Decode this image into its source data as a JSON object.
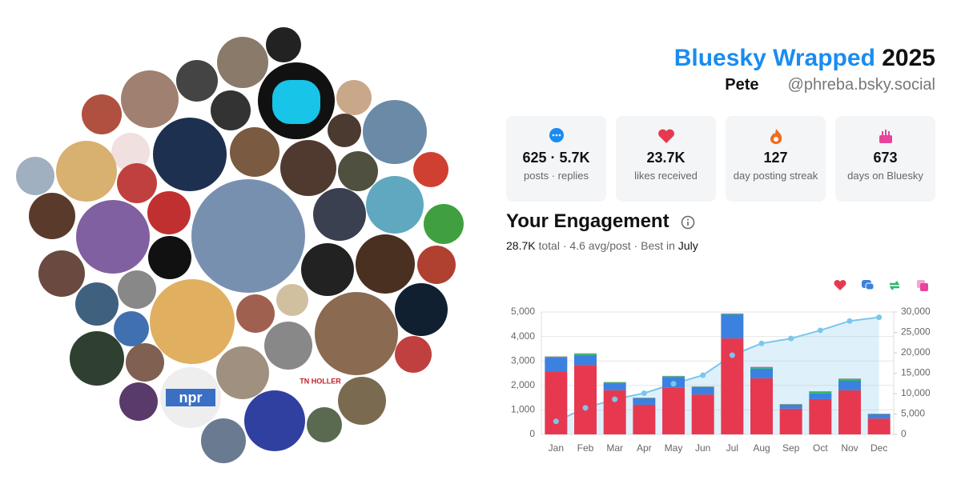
{
  "header": {
    "title": "Bluesky Wrapped",
    "year": "2025",
    "name": "Pete",
    "handle": "@phreba.bsky.social"
  },
  "stats": [
    {
      "value": "625 · 5.7K",
      "label": "posts · replies"
    },
    {
      "value": "23.7K",
      "label": "likes received"
    },
    {
      "value": "127",
      "label": "day posting streak"
    },
    {
      "value": "673",
      "label": "days on Bluesky"
    }
  ],
  "engagement": {
    "title": "Your Engagement",
    "total": "28.7K",
    "summary": "total · 4.6 avg/post · Best in",
    "best": "July"
  },
  "avatars": {
    "labels": [
      "npr",
      "TN HOLLER"
    ]
  },
  "chart_data": {
    "type": "bar",
    "categories": [
      "Jan",
      "Feb",
      "Mar",
      "Apr",
      "May",
      "Jun",
      "Jul",
      "Aug",
      "Sep",
      "Oct",
      "Nov",
      "Dec"
    ],
    "series": [
      {
        "color": "#e63950",
        "values": [
          2580,
          2840,
          1800,
          1210,
          1900,
          1630,
          3920,
          2290,
          1050,
          1440,
          1800,
          650
        ]
      },
      {
        "color": "#3b82e0",
        "values": [
          560,
          400,
          290,
          260,
          450,
          300,
          980,
          400,
          160,
          230,
          390,
          170
        ]
      },
      {
        "color": "#2fb86b",
        "values": [
          40,
          60,
          40,
          20,
          30,
          20,
          30,
          60,
          20,
          80,
          80,
          20
        ]
      },
      {
        "color": "#e8449a",
        "values": [
          10,
          10,
          10,
          10,
          10,
          10,
          10,
          10,
          10,
          10,
          10,
          10
        ]
      },
      {
        "type": "line",
        "axis": "y2",
        "color": "#7cc6ee",
        "values": [
          3200,
          6500,
          8600,
          10100,
          12400,
          14500,
          19400,
          22300,
          23500,
          25500,
          27800,
          28700
        ]
      }
    ],
    "ylim": [
      0,
      5000
    ],
    "yticks": [
      0,
      {
        "value": 1000,
        "label": "1,000"
      },
      {
        "value": 2000,
        "label": "2,000"
      },
      {
        "value": 3000,
        "label": "3,000"
      },
      {
        "value": 4000,
        "label": "4,000"
      },
      {
        "value": 5000,
        "label": "5,000"
      }
    ],
    "y2lim": [
      0,
      30000
    ],
    "y2ticks": [
      0,
      {
        "value": 5000,
        "label": "5,000"
      },
      {
        "value": 10000,
        "label": "10,000"
      },
      {
        "value": 15000,
        "label": "15,000"
      },
      {
        "value": 20000,
        "label": "20,000"
      },
      {
        "value": 25000,
        "label": "25,000"
      },
      {
        "value": 30000,
        "label": "30,000"
      }
    ],
    "grid": true
  }
}
